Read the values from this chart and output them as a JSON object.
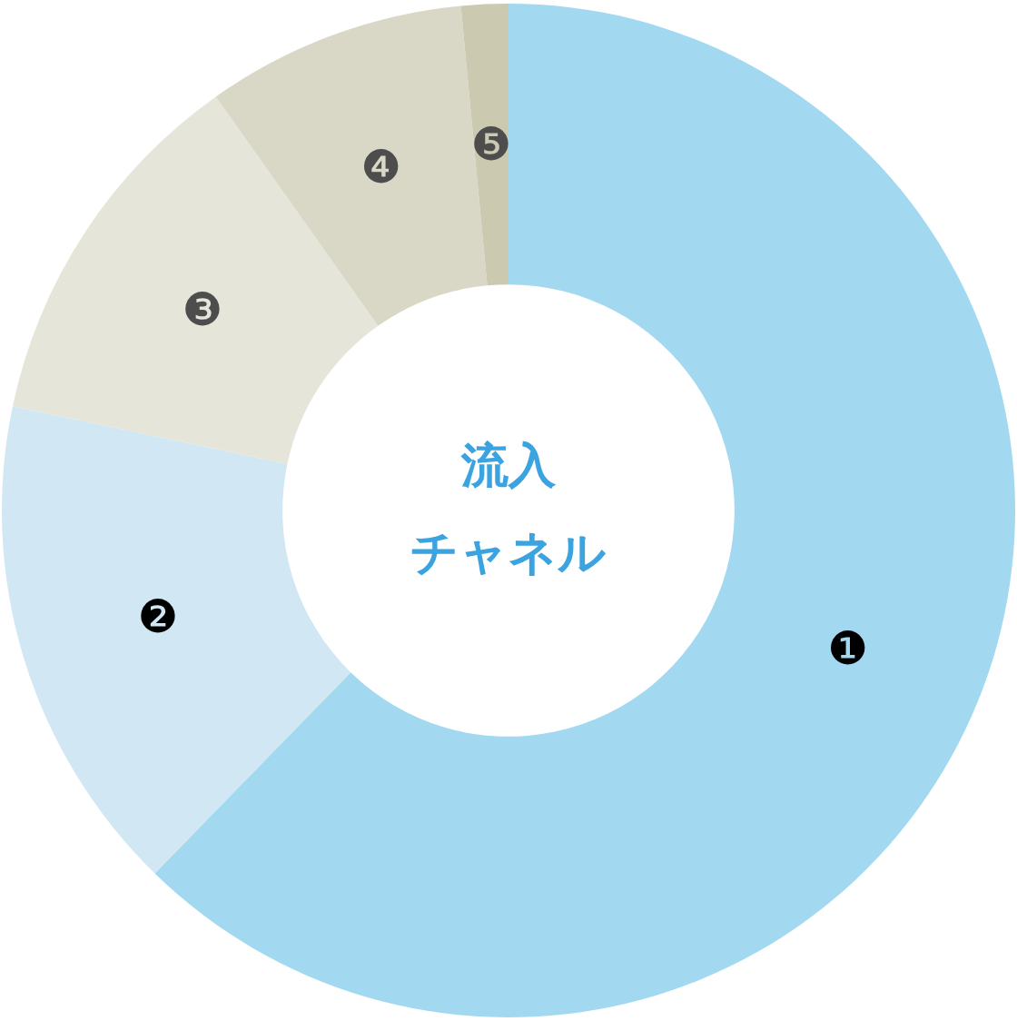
{
  "chart_data": {
    "type": "donut",
    "title": "流入チャネル",
    "categories": [
      "❶",
      "❷",
      "❸",
      "❹",
      "❺"
    ],
    "values": [
      62.3,
      16.0,
      11.9,
      8.3,
      1.5
    ],
    "colors": [
      "#a2d9f0",
      "#d1e7f4",
      "#e6e5da",
      "#d9d8c7",
      "#ccc9b1"
    ]
  }
}
